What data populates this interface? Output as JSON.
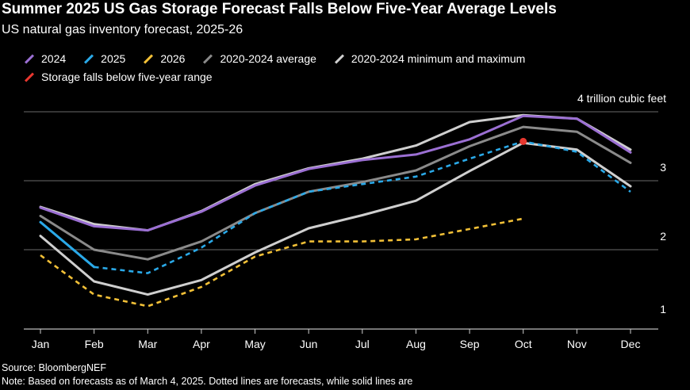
{
  "header": {
    "title": "Summer 2025 US Gas Storage Forecast Falls Below Five-Year Average Levels",
    "subtitle": "US natural gas inventory forecast, 2025-26"
  },
  "legend": {
    "items": [
      {
        "label": "2024",
        "color": "#9b6fd3"
      },
      {
        "label": "2025",
        "color": "#2aa9e8"
      },
      {
        "label": "2026",
        "color": "#f2c037"
      },
      {
        "label": "2020-2024 average",
        "color": "#8a8a8a"
      },
      {
        "label": "2020-2024 minimum and maximum",
        "color": "#cfcfcf"
      },
      {
        "label": "Storage falls below five-year range",
        "color": "#e8372f"
      }
    ]
  },
  "footer": {
    "source": "Source: BloombergNEF",
    "note": "Note: Based on forecasts as of March 4, 2025. Dotted lines are forecasts, while solid lines are"
  },
  "chart_data": {
    "type": "line",
    "title": "Summer 2025 US Gas Storage Forecast Falls Below Five-Year Average Levels",
    "subtitle": "US natural gas inventory forecast, 2025-26",
    "ylabel": "trillion cubic feet",
    "top_tick_label": "4 trillion cubic feet",
    "categories": [
      "Jan",
      "Feb",
      "Mar",
      "Apr",
      "May",
      "Jun",
      "Jul",
      "Aug",
      "Sep",
      "Oct",
      "Nov",
      "Dec"
    ],
    "ylim": [
      0.85,
      4.0
    ],
    "yticks": [
      {
        "value": 1,
        "label": "1"
      },
      {
        "value": 2,
        "label": "2"
      },
      {
        "value": 3,
        "label": "3"
      },
      {
        "value": 4,
        "label": "4 trillion cubic feet"
      }
    ],
    "grid": true,
    "series": [
      {
        "name": "2020-2024 maximum",
        "style": "solid",
        "color": "#cfcfcf",
        "values": [
          2.62,
          2.37,
          2.28,
          2.56,
          2.95,
          3.18,
          3.32,
          3.51,
          3.85,
          3.95,
          3.9,
          3.45
        ]
      },
      {
        "name": "2020-2024 average",
        "style": "solid",
        "color": "#8a8a8a",
        "values": [
          2.49,
          2.0,
          1.86,
          2.12,
          2.53,
          2.84,
          2.98,
          3.15,
          3.5,
          3.78,
          3.71,
          3.26
        ]
      },
      {
        "name": "2020-2024 minimum",
        "style": "solid",
        "color": "#cfcfcf",
        "values": [
          2.2,
          1.54,
          1.35,
          1.56,
          1.96,
          2.31,
          2.5,
          2.71,
          3.14,
          3.55,
          3.45,
          2.92
        ]
      },
      {
        "name": "2024",
        "style": "solid",
        "color": "#9b6fd3",
        "values": [
          2.61,
          2.34,
          2.28,
          2.55,
          2.93,
          3.17,
          3.3,
          3.38,
          3.6,
          3.94,
          3.9,
          3.41
        ]
      },
      {
        "name": "2025 actual",
        "style": "solid",
        "color": "#2aa9e8",
        "values": [
          2.4,
          1.75,
          null,
          null,
          null,
          null,
          null,
          null,
          null,
          null,
          null,
          null
        ]
      },
      {
        "name": "2025 forecast",
        "style": "dotted",
        "color": "#2aa9e8",
        "values": [
          null,
          1.75,
          1.66,
          2.03,
          2.53,
          2.84,
          2.95,
          3.06,
          3.32,
          3.57,
          3.42,
          2.84
        ]
      },
      {
        "name": "2026 forecast",
        "style": "dotted",
        "color": "#f2c037",
        "values": [
          1.92,
          1.35,
          1.18,
          1.46,
          1.9,
          2.12,
          2.12,
          2.15,
          2.3,
          2.45,
          null,
          null
        ]
      }
    ],
    "markers": [
      {
        "name": "Storage falls below five-year range",
        "category": "Oct",
        "value": 3.57,
        "color": "#e8372f"
      }
    ]
  }
}
